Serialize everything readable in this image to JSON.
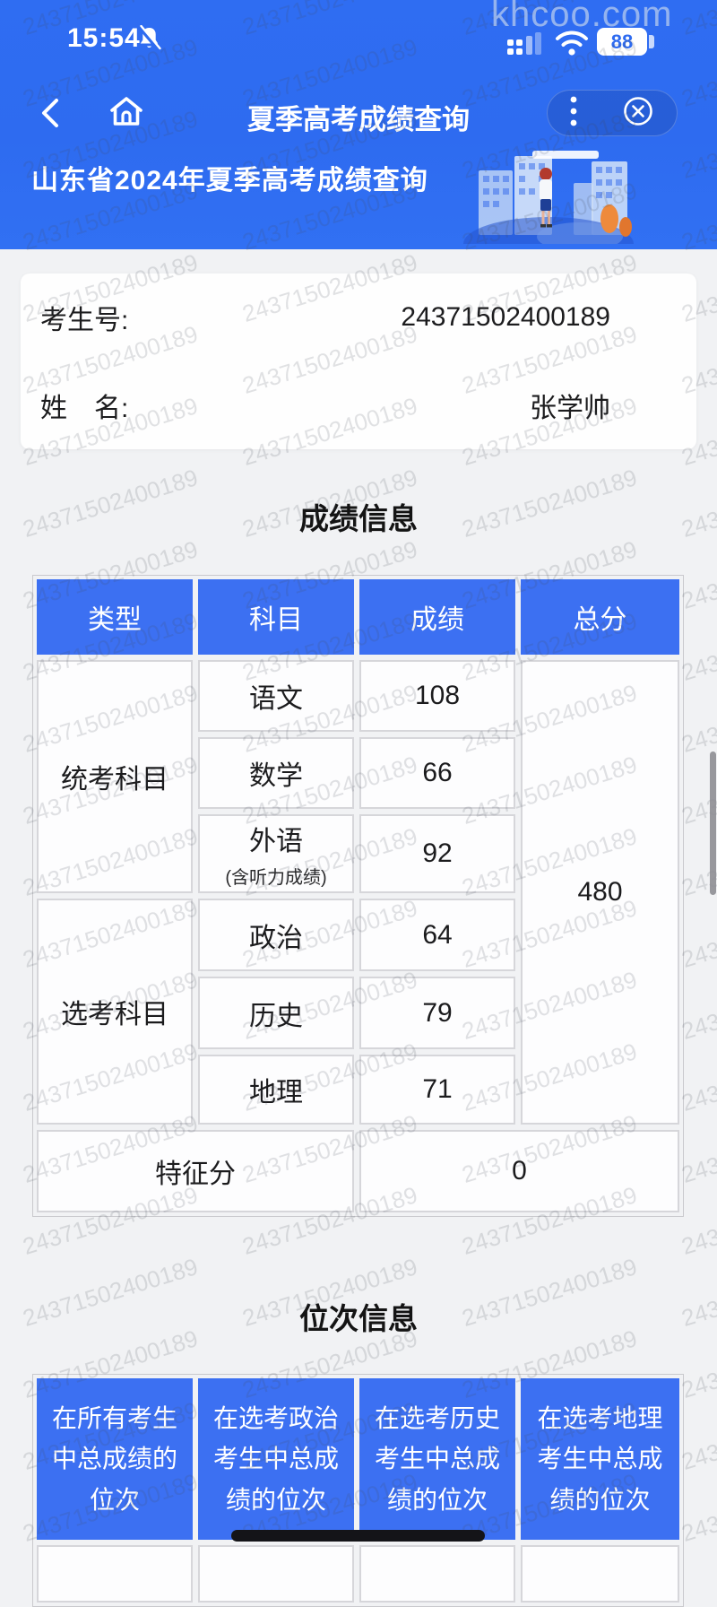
{
  "status_bar": {
    "time": "15:54",
    "battery_level": "88"
  },
  "page_watermark": {
    "site": "khcoo.com",
    "text": "24371502400189"
  },
  "nav": {
    "title": "夏季高考成绩查询"
  },
  "banner": {
    "title": "山东省2024年夏季高考成绩查询"
  },
  "candidate": {
    "id_label": "考生号:",
    "id": "24371502400189",
    "name_label": "姓　名:",
    "name": "张学帅"
  },
  "score": {
    "title": "成绩信息",
    "headers": [
      "类型",
      "科目",
      "成绩",
      "总分"
    ],
    "groups": [
      {
        "type": "统考科目",
        "subjects": [
          {
            "name": "语文",
            "score": "108"
          },
          {
            "name": "数学",
            "score": "66"
          },
          {
            "name": "外语",
            "note": "(含听力成绩)",
            "score": "92"
          }
        ]
      },
      {
        "type": "选考科目",
        "subjects": [
          {
            "name": "政治",
            "score": "64"
          },
          {
            "name": "历史",
            "score": "79"
          },
          {
            "name": "地理",
            "score": "71"
          }
        ]
      }
    ],
    "total": "480",
    "feature_label": "特征分",
    "feature_value": "0"
  },
  "rank": {
    "title": "位次信息",
    "headers": [
      "在所有考生中总成绩的位次",
      "在选考政治考生中总成绩的位次",
      "在选考历史考生中总成绩的位次",
      "在选考地理考生中总成绩的位次"
    ]
  },
  "colors": {
    "top_blue": "#2f6df2",
    "table_header_blue": "#3c70f2",
    "page_bg": "#f1f2f4"
  }
}
